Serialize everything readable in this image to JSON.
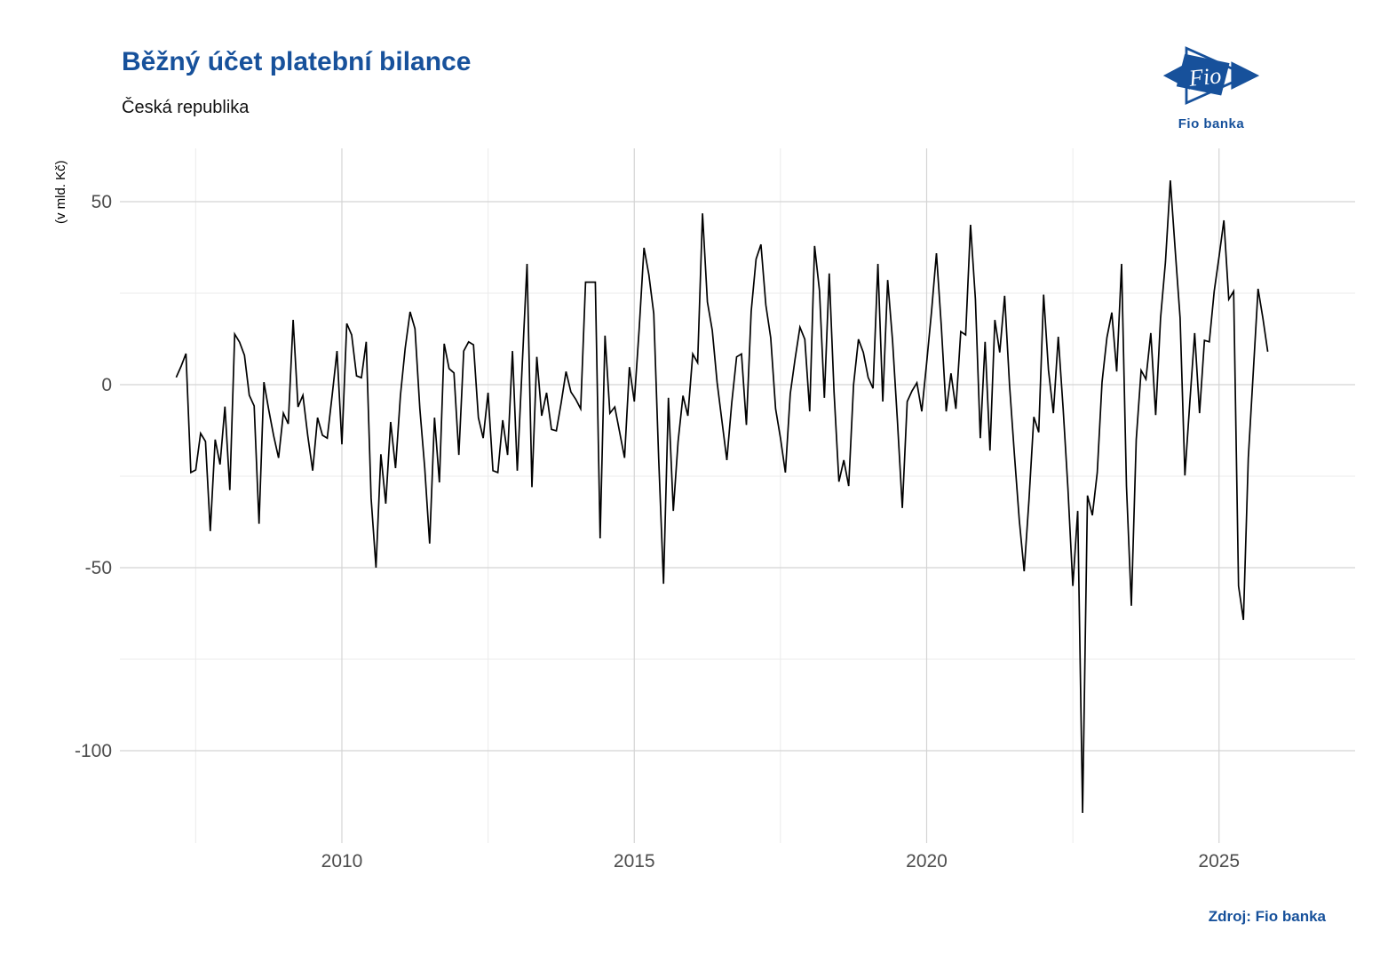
{
  "header": {
    "title": "Běžný účet platební bilance",
    "subtitle": "Česká republika"
  },
  "logo": {
    "mark_text": "Fio",
    "caption": "Fio banka"
  },
  "footer": {
    "source": "Zdroj: Fio banka"
  },
  "colors": {
    "brand_blue": "#17519b",
    "line": "#000000",
    "tick_text": "#4d4d4d",
    "grid_major": "#d4d4d4",
    "grid_minor": "#ebebeb",
    "background": "#ffffff"
  },
  "chart_data": {
    "type": "line",
    "title": "Běžný účet platební bilance",
    "subtitle": "Česká republika",
    "ylabel": "(v mld. Kč)",
    "xlabel": "",
    "unit": "mld. Kč",
    "frequency": "monthly",
    "start": "2007-03",
    "end": "2025-11",
    "x_ticks": [
      2010,
      2015,
      2020,
      2025
    ],
    "x_minor_ticks": [
      2007.5,
      2012.5,
      2017.5,
      2022.5
    ],
    "y_ticks": [
      50,
      0,
      -50,
      -100
    ],
    "y_minor_ticks": [
      25,
      -25,
      -75
    ],
    "ylim": [
      -125,
      64
    ],
    "xlim": [
      2006.2,
      2027.3
    ],
    "grid": true,
    "legend": false,
    "values": [
      2,
      5,
      8.5,
      -24,
      -23.3,
      -13.3,
      -15.5,
      -40,
      -15,
      -21.8,
      -6,
      -28.8,
      13.8,
      11.6,
      8,
      -2.9,
      -5.8,
      -38,
      0.7,
      -7,
      -14,
      -20,
      -7.8,
      -10.7,
      17.7,
      -6.1,
      -2.9,
      -14,
      -23.5,
      -9,
      -13.8,
      -14.6,
      -3,
      9.2,
      -16.3,
      16.7,
      13.6,
      2.4,
      1.9,
      11.7,
      -31,
      -50,
      -19,
      -32.5,
      -10.2,
      -22.8,
      -3,
      10,
      19.9,
      15.3,
      -6.6,
      -22.8,
      -43.4,
      -9,
      -26.7,
      11.2,
      4.4,
      3.2,
      -19.2,
      9.2,
      11.7,
      10.9,
      -9,
      -14.6,
      -2.2,
      -23.5,
      -24,
      -9.7,
      -19.2,
      9.2,
      -23.5,
      5,
      33,
      -28,
      7.6,
      -8.5,
      -2.2,
      -12.2,
      -12.6,
      -5,
      3.6,
      -2,
      -4,
      -6.6,
      28,
      28,
      28,
      -42,
      13.4,
      -7.8,
      -6.1,
      -13,
      -20,
      4.8,
      -4.6,
      15,
      37.4,
      30,
      19.4,
      -20,
      -54.4,
      -3.6,
      -34.5,
      -15.5,
      -3,
      -8.5,
      8.4,
      6,
      46.8,
      22.6,
      14.8,
      0.7,
      -10,
      -20.6,
      -5,
      7.6,
      8.4,
      -11,
      20,
      34.3,
      38.3,
      21.8,
      12.8,
      -6.6,
      -14.6,
      -24,
      -2.5,
      7,
      15.7,
      12.4,
      -7.3,
      37.9,
      25.7,
      -3.6,
      30.4,
      -2,
      -26.5,
      -20.6,
      -27.7,
      0,
      12.4,
      8.8,
      2,
      -1,
      33,
      -4.6,
      28.6,
      12,
      -10,
      -33.7,
      -4.6,
      -1.7,
      0.5,
      -7.3,
      6,
      20,
      35.9,
      16,
      -7.3,
      3.1,
      -6.6,
      14.5,
      13.6,
      43.7,
      23.3,
      -14.6,
      11.7,
      -18,
      17.7,
      8.8,
      24.3,
      0,
      -19,
      -37,
      -51,
      -31.6,
      -8.8,
      -13,
      24.6,
      3.9,
      -7.8,
      13.1,
      -6.6,
      -28.4,
      -55,
      -34.5,
      -117,
      -30.3,
      -35.7,
      -24,
      0.7,
      12.9,
      19.7,
      3.6,
      33,
      -27.7,
      -60.4,
      -15,
      3.9,
      1.5,
      14.1,
      -8.3,
      18.2,
      33.5,
      55.8,
      36.7,
      18.2,
      -24.8,
      -5,
      14.1,
      -7.8,
      12.1,
      11.7,
      25.5,
      35,
      44.9,
      23.3,
      25.5,
      -55,
      -64.3,
      -20,
      3,
      26.2,
      18.2,
      9
    ]
  }
}
